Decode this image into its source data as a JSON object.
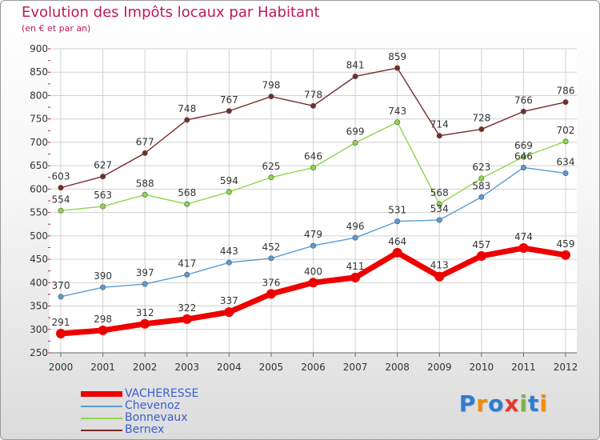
{
  "header": {
    "title": "Evolution des Impôts locaux par Habitant",
    "subtitle": "(en € et par an)"
  },
  "brand": {
    "text": "Proxiti",
    "colors": [
      "#2e7dd1",
      "#f28c00",
      "#2e7dd1",
      "#e53935",
      "#7cb342",
      "#2e7dd1",
      "#f28c00"
    ]
  },
  "chart_data": {
    "type": "line",
    "categories": [
      "2000",
      "2001",
      "2002",
      "2003",
      "2004",
      "2005",
      "2006",
      "2007",
      "2008",
      "2009",
      "2010",
      "2011",
      "2012"
    ],
    "ylim": [
      250,
      900
    ],
    "yticks": [
      250,
      300,
      350,
      400,
      450,
      500,
      550,
      600,
      650,
      700,
      750,
      800,
      850,
      900
    ],
    "grid": true,
    "legend_position": "bottom-left",
    "series": [
      {
        "name": "VACHERESSE",
        "color": "#ee0000",
        "highlight": true,
        "values": [
          291,
          298,
          312,
          322,
          337,
          376,
          400,
          411,
          464,
          413,
          457,
          474,
          459
        ]
      },
      {
        "name": "Chevenoz",
        "color": "#5b9bd5",
        "highlight": false,
        "values": [
          370,
          390,
          397,
          417,
          443,
          452,
          479,
          496,
          531,
          534,
          583,
          646,
          634
        ]
      },
      {
        "name": "Bonnevaux",
        "color": "#8fd64a",
        "highlight": false,
        "values": [
          554,
          563,
          588,
          568,
          594,
          625,
          646,
          699,
          743,
          568,
          623,
          669,
          702
        ]
      },
      {
        "name": "Bernex",
        "color": "#7a2a2a",
        "highlight": false,
        "values": [
          603,
          627,
          677,
          748,
          767,
          798,
          778,
          841,
          859,
          714,
          728,
          766,
          786
        ]
      }
    ]
  }
}
